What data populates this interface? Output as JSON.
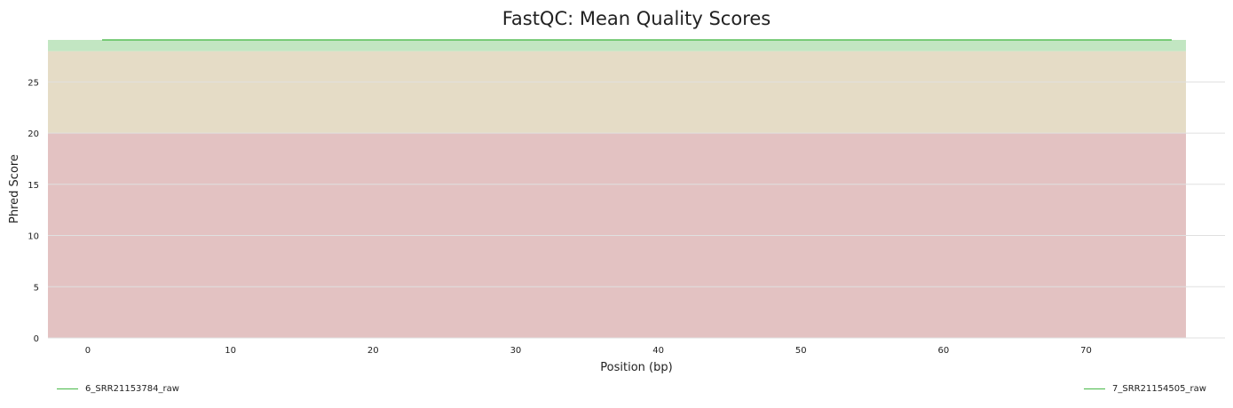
{
  "chart_data": {
    "type": "line",
    "title": "FastQC: Mean Quality Scores",
    "xlabel": "Position (bp)",
    "ylabel": "Phred Score",
    "xlim": [
      -2.8,
      77
    ],
    "ylim": [
      0,
      29.1
    ],
    "xticks": [
      0,
      10,
      20,
      30,
      40,
      50,
      60,
      70
    ],
    "yticks": [
      0,
      5,
      10,
      15,
      20,
      25
    ],
    "grid": true,
    "legend_position": "bottom",
    "bands": [
      {
        "from": 0,
        "to": 20,
        "color": "#e3c2c2"
      },
      {
        "from": 20,
        "to": 28,
        "color": "#e5dcc6"
      },
      {
        "from": 28,
        "to": 29.1,
        "color": "#c2e6c2"
      }
    ],
    "series": [
      {
        "name": "6_SRR21153784_raw",
        "color": "#46b846",
        "x": [
          1,
          76
        ],
        "y": [
          29.1,
          29.1
        ]
      },
      {
        "name": "7_SRR21154505_raw",
        "color": "#46b846",
        "x": [
          1,
          76
        ],
        "y": [
          29.1,
          29.1
        ]
      }
    ]
  }
}
